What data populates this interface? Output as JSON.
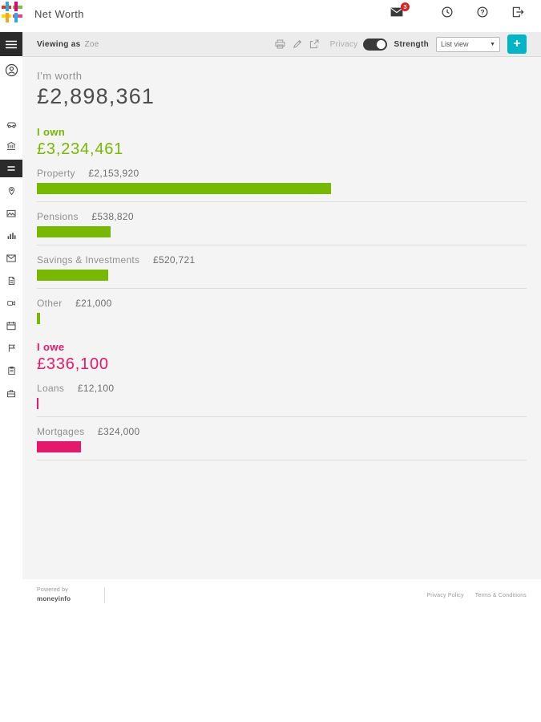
{
  "header": {
    "title": "Net Worth",
    "badge_count": "3"
  },
  "toolbar": {
    "viewing_as_label": "Viewing as",
    "viewing_as_value": "Zoe",
    "privacy_label": "Privacy",
    "strength_label": "Strength",
    "view_select": "List view",
    "add_label": "+"
  },
  "summary": {
    "worth_label": "I’m worth",
    "worth_value": "£2,898,361"
  },
  "own": {
    "label": "I own",
    "value": "£3,234,461"
  },
  "owe": {
    "label": "I owe",
    "value": "£336,100"
  },
  "assets": [
    {
      "label": "Property",
      "value": "£2,153,920",
      "bar_pct": 60
    },
    {
      "label": "Pensions",
      "value": "£538,820",
      "bar_pct": 15
    },
    {
      "label": "Savings & Investments",
      "value": "£520,721",
      "bar_pct": 14.5
    },
    {
      "label": "Other",
      "value": "£21,000",
      "bar_pct": 0.6
    }
  ],
  "liabilities": [
    {
      "label": "Loans",
      "value": "£12,100",
      "bar_pct": 0.35
    },
    {
      "label": "Mortgages",
      "value": "£324,000",
      "bar_pct": 9
    }
  ],
  "footer": {
    "powered_by": "Powered by",
    "brand": "moneyinfo",
    "privacy_link": "Privacy Policy",
    "terms_link": "Terms & Conditions"
  },
  "colors": {
    "asset_green": "#76b900",
    "liability_pink": "#e6186b",
    "accent_teal": "#00b5c8",
    "badge_red": "#e02020"
  }
}
